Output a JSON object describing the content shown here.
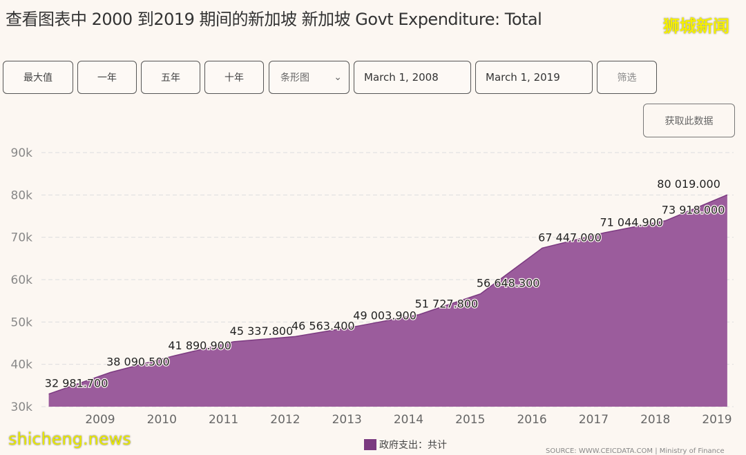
{
  "header": {
    "title": "查看图表中 2000 到2019 期间的新加坡 新加坡 Govt Expenditure: Total",
    "brand": "狮城新闻"
  },
  "toolbar": {
    "max": "最大值",
    "one_year": "一年",
    "five_year": "五年",
    "ten_year": "十年",
    "chart_type": "条形图",
    "start_date": "March 1, 2008",
    "end_date": "March 1, 2019",
    "filter": "筛选",
    "get_data": "获取此数据"
  },
  "watermark": "shicheng.news",
  "source": "SOURCE: WWW.CEICDATA.COM | Ministry of Finance",
  "chart_data": {
    "type": "area",
    "color": "#9b5c9c",
    "legend_color": "#7b3a80",
    "x": [
      "2008-03",
      "2009-03",
      "2010-03",
      "2011-03",
      "2012-03",
      "2013-03",
      "2014-03",
      "2015-03",
      "2016-03",
      "2017-03",
      "2018-03",
      "2019-03"
    ],
    "series": [
      {
        "name": "政府支出：共计",
        "values": [
          32981.7,
          38090.5,
          41890.9,
          45337.8,
          46563.4,
          49003.9,
          51727.8,
          56648.3,
          67447.0,
          71044.9,
          73918.0,
          80019.0
        ]
      }
    ],
    "data_labels": [
      "32 981.700",
      "38 090.500",
      "41 890.900",
      "45 337.800",
      "46 563.400",
      "49 003.900",
      "51 727.800",
      "56 648.300",
      "67 447.000",
      "71 044.900",
      "73 918.000",
      "80 019.000"
    ],
    "x_ticks": [
      "2009",
      "2010",
      "2011",
      "2012",
      "2013",
      "2014",
      "2015",
      "2016",
      "2017",
      "2018",
      "2019"
    ],
    "y_ticks": [
      "30k",
      "40k",
      "50k",
      "60k",
      "70k",
      "80k",
      "90k"
    ],
    "ylim": [
      30000,
      90000
    ],
    "grid": true,
    "legend_position": "bottom"
  }
}
